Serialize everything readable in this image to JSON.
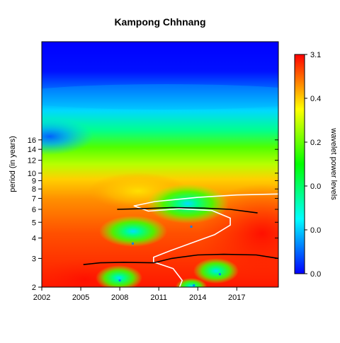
{
  "chart_data": {
    "type": "heatmap",
    "title": "Kampong Chhnang",
    "xlabel": "",
    "ylabel": "period (in years)",
    "x_ticks": [
      "2002",
      "2005",
      "2008",
      "2011",
      "2014",
      "2017"
    ],
    "x_tick_values": [
      2002,
      2005,
      2008,
      2011,
      2014,
      2017
    ],
    "xlim": [
      2002,
      2020.2
    ],
    "y_ticks": [
      "2",
      "3",
      "4",
      "5",
      "6",
      "7",
      "8",
      "9",
      "10",
      "12",
      "14",
      "16"
    ],
    "y_tick_values": [
      2,
      3,
      4,
      5,
      6,
      7,
      8,
      9,
      10,
      12,
      14,
      16
    ],
    "ylim": [
      2,
      64
    ],
    "y_scale": "log2",
    "grid": false,
    "colorbar": {
      "label": "wavelet power levels",
      "tick_labels": [
        "0.0",
        "0.0",
        "0.0",
        "0.2",
        "0.4",
        "3.1"
      ],
      "colormap": [
        "#0000ff",
        "#00ffff",
        "#00ff00",
        "#ffff00",
        "#ff0000"
      ]
    },
    "regions": [
      {
        "type": "low",
        "x": 2002.0,
        "period": 10.3
      },
      {
        "type": "low",
        "x": 2008.0,
        "period": 2.2
      },
      {
        "type": "low",
        "x": 2009.0,
        "period": 3.7
      },
      {
        "type": "low",
        "x": 2013.5,
        "period": 4.7
      },
      {
        "type": "low",
        "x": 2013.7,
        "period": 2.05
      },
      {
        "type": "low",
        "x": 2015.7,
        "period": 2.4
      }
    ],
    "significance_contour": [
      [
        2012.6,
        2.0
      ],
      [
        2012.8,
        2.2
      ],
      [
        2012.1,
        2.6
      ],
      [
        2010.6,
        2.85
      ],
      [
        2010.6,
        3.05
      ],
      [
        2011.9,
        3.35
      ],
      [
        2013.4,
        3.7
      ],
      [
        2015.3,
        4.2
      ],
      [
        2016.5,
        4.8
      ],
      [
        2016.5,
        5.3
      ],
      [
        2015.1,
        5.9
      ],
      [
        2012.6,
        6.05
      ],
      [
        2010.2,
        5.85
      ],
      [
        2009.1,
        6.3
      ],
      [
        2010.7,
        6.7
      ],
      [
        2014.0,
        7.1
      ],
      [
        2017.0,
        7.35
      ],
      [
        2020.2,
        7.45
      ]
    ],
    "ridges": [
      {
        "points": [
          [
            2007.8,
            6.0
          ],
          [
            2009.5,
            6.05
          ],
          [
            2012.0,
            6.15
          ],
          [
            2014.5,
            6.1
          ],
          [
            2016.5,
            6.0
          ],
          [
            2018.6,
            5.7
          ]
        ]
      },
      {
        "points": [
          [
            2005.2,
            2.75
          ],
          [
            2006.5,
            2.82
          ],
          [
            2008.3,
            2.84
          ],
          [
            2010.6,
            2.82
          ],
          [
            2012.0,
            3.0
          ],
          [
            2014.0,
            3.15
          ],
          [
            2016.0,
            3.18
          ],
          [
            2018.5,
            3.15
          ],
          [
            2020.2,
            3.0
          ]
        ]
      }
    ]
  }
}
